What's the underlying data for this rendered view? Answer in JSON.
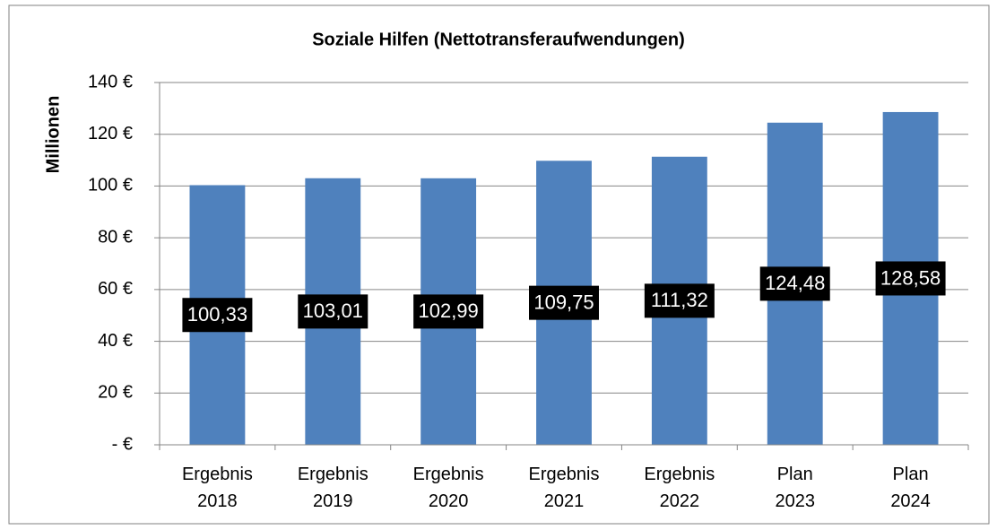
{
  "chart_data": {
    "type": "bar",
    "title": "Soziale Hilfen (Nettotransferaufwendungen)",
    "y_label": "Millionen",
    "categories": [
      "Ergebnis 2018",
      "Ergebnis 2019",
      "Ergebnis 2020",
      "Ergebnis 2021",
      "Ergebnis 2022",
      "Plan 2023",
      "Plan 2024"
    ],
    "values": [
      100.33,
      103.01,
      102.99,
      109.75,
      111.32,
      124.48,
      128.58
    ],
    "value_labels": [
      "100,33",
      "103,01",
      "102,99",
      "109,75",
      "111,32",
      "124,48",
      "128,58"
    ],
    "color": "#4f81bd",
    "ylim": [
      0,
      140
    ],
    "yticks": [
      {
        "value": 0,
        "label": "-  €"
      },
      {
        "value": 20,
        "label": "20 €"
      },
      {
        "value": 40,
        "label": "40 €"
      },
      {
        "value": 60,
        "label": "60 €"
      },
      {
        "value": 80,
        "label": "80 €"
      },
      {
        "value": 100,
        "label": "100 €"
      },
      {
        "value": 120,
        "label": "120 €"
      },
      {
        "value": 140,
        "label": "140 €"
      }
    ],
    "grid": true
  }
}
